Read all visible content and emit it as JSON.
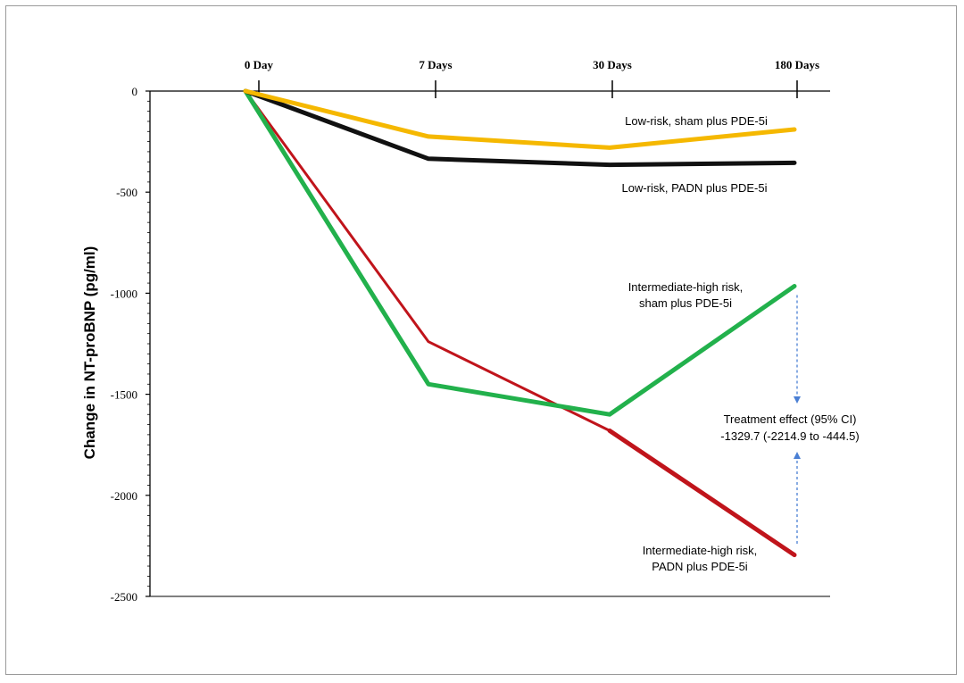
{
  "chart_data": {
    "type": "line",
    "title": "",
    "xlabel": "",
    "ylabel": "Change in NT-proBNP (pg/ml)",
    "categories": [
      "0 Day",
      "7 Days",
      "30 Days",
      "180 Days"
    ],
    "ylim": [
      -2500,
      0
    ],
    "yticks": [
      0,
      -500,
      -1000,
      -1500,
      -2000,
      -2500
    ],
    "grid": false,
    "series": [
      {
        "name": "Low-risk, sham plus PDE-5i",
        "label_lines": [
          "Low-risk, sham plus PDE-5i"
        ],
        "color": "#f5b800",
        "values": [
          0,
          -225,
          -280,
          -190
        ]
      },
      {
        "name": "Low-risk, PADN plus PDE-5i",
        "label_lines": [
          "Low-risk, PADN plus PDE-5i"
        ],
        "color": "#111111",
        "values": [
          0,
          -335,
          -365,
          -355
        ]
      },
      {
        "name": "Intermediate-high risk, sham plus PDE-5i",
        "label_lines": [
          "Intermediate-high risk,",
          "sham plus PDE-5i"
        ],
        "color": "#22b14c",
        "values": [
          0,
          -1450,
          -1600,
          -965
        ]
      },
      {
        "name": "Intermediate-high risk, PADN plus PDE-5i",
        "label_lines": [
          "Intermediate-high risk,",
          "PADN plus PDE-5i"
        ],
        "color": "#c0141b",
        "values": [
          0,
          -1240,
          -1680,
          -2295
        ]
      }
    ],
    "annotation": {
      "lines": [
        "Treatment effect (95% CI)",
        "-1329.7 (-2214.9 to -444.5)"
      ],
      "color": "#4a7fd4"
    }
  }
}
